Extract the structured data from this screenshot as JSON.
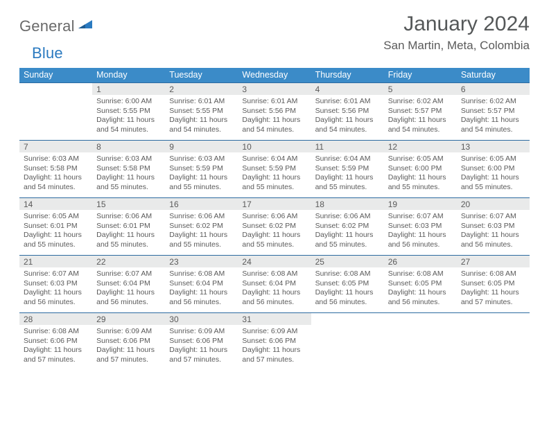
{
  "logo": {
    "part1": "General",
    "part2": "Blue"
  },
  "month_title": "January 2024",
  "location": "San Martin, Meta, Colombia",
  "colors": {
    "header_bg": "#3b8bc8",
    "header_text": "#ffffff",
    "daynum_bg": "#e9eaea",
    "row_divider": "#2b6aa0",
    "body_text": "#5a5a5a",
    "logo_gray": "#6a6a6a",
    "logo_blue": "#2b7ac0",
    "page_bg": "#ffffff"
  },
  "typography": {
    "title_fontsize": 30,
    "location_fontsize": 17,
    "dayhead_fontsize": 12.5,
    "daynum_fontsize": 12,
    "cell_fontsize": 10.5,
    "font_family": "Arial"
  },
  "day_headers": [
    "Sunday",
    "Monday",
    "Tuesday",
    "Wednesday",
    "Thursday",
    "Friday",
    "Saturday"
  ],
  "weeks": [
    [
      {
        "num": "",
        "lines": []
      },
      {
        "num": "1",
        "lines": [
          "Sunrise: 6:00 AM",
          "Sunset: 5:55 PM",
          "Daylight: 11 hours and 54 minutes."
        ]
      },
      {
        "num": "2",
        "lines": [
          "Sunrise: 6:01 AM",
          "Sunset: 5:55 PM",
          "Daylight: 11 hours and 54 minutes."
        ]
      },
      {
        "num": "3",
        "lines": [
          "Sunrise: 6:01 AM",
          "Sunset: 5:56 PM",
          "Daylight: 11 hours and 54 minutes."
        ]
      },
      {
        "num": "4",
        "lines": [
          "Sunrise: 6:01 AM",
          "Sunset: 5:56 PM",
          "Daylight: 11 hours and 54 minutes."
        ]
      },
      {
        "num": "5",
        "lines": [
          "Sunrise: 6:02 AM",
          "Sunset: 5:57 PM",
          "Daylight: 11 hours and 54 minutes."
        ]
      },
      {
        "num": "6",
        "lines": [
          "Sunrise: 6:02 AM",
          "Sunset: 5:57 PM",
          "Daylight: 11 hours and 54 minutes."
        ]
      }
    ],
    [
      {
        "num": "7",
        "lines": [
          "Sunrise: 6:03 AM",
          "Sunset: 5:58 PM",
          "Daylight: 11 hours and 54 minutes."
        ]
      },
      {
        "num": "8",
        "lines": [
          "Sunrise: 6:03 AM",
          "Sunset: 5:58 PM",
          "Daylight: 11 hours and 55 minutes."
        ]
      },
      {
        "num": "9",
        "lines": [
          "Sunrise: 6:03 AM",
          "Sunset: 5:59 PM",
          "Daylight: 11 hours and 55 minutes."
        ]
      },
      {
        "num": "10",
        "lines": [
          "Sunrise: 6:04 AM",
          "Sunset: 5:59 PM",
          "Daylight: 11 hours and 55 minutes."
        ]
      },
      {
        "num": "11",
        "lines": [
          "Sunrise: 6:04 AM",
          "Sunset: 5:59 PM",
          "Daylight: 11 hours and 55 minutes."
        ]
      },
      {
        "num": "12",
        "lines": [
          "Sunrise: 6:05 AM",
          "Sunset: 6:00 PM",
          "Daylight: 11 hours and 55 minutes."
        ]
      },
      {
        "num": "13",
        "lines": [
          "Sunrise: 6:05 AM",
          "Sunset: 6:00 PM",
          "Daylight: 11 hours and 55 minutes."
        ]
      }
    ],
    [
      {
        "num": "14",
        "lines": [
          "Sunrise: 6:05 AM",
          "Sunset: 6:01 PM",
          "Daylight: 11 hours and 55 minutes."
        ]
      },
      {
        "num": "15",
        "lines": [
          "Sunrise: 6:06 AM",
          "Sunset: 6:01 PM",
          "Daylight: 11 hours and 55 minutes."
        ]
      },
      {
        "num": "16",
        "lines": [
          "Sunrise: 6:06 AM",
          "Sunset: 6:02 PM",
          "Daylight: 11 hours and 55 minutes."
        ]
      },
      {
        "num": "17",
        "lines": [
          "Sunrise: 6:06 AM",
          "Sunset: 6:02 PM",
          "Daylight: 11 hours and 55 minutes."
        ]
      },
      {
        "num": "18",
        "lines": [
          "Sunrise: 6:06 AM",
          "Sunset: 6:02 PM",
          "Daylight: 11 hours and 55 minutes."
        ]
      },
      {
        "num": "19",
        "lines": [
          "Sunrise: 6:07 AM",
          "Sunset: 6:03 PM",
          "Daylight: 11 hours and 56 minutes."
        ]
      },
      {
        "num": "20",
        "lines": [
          "Sunrise: 6:07 AM",
          "Sunset: 6:03 PM",
          "Daylight: 11 hours and 56 minutes."
        ]
      }
    ],
    [
      {
        "num": "21",
        "lines": [
          "Sunrise: 6:07 AM",
          "Sunset: 6:03 PM",
          "Daylight: 11 hours and 56 minutes."
        ]
      },
      {
        "num": "22",
        "lines": [
          "Sunrise: 6:07 AM",
          "Sunset: 6:04 PM",
          "Daylight: 11 hours and 56 minutes."
        ]
      },
      {
        "num": "23",
        "lines": [
          "Sunrise: 6:08 AM",
          "Sunset: 6:04 PM",
          "Daylight: 11 hours and 56 minutes."
        ]
      },
      {
        "num": "24",
        "lines": [
          "Sunrise: 6:08 AM",
          "Sunset: 6:04 PM",
          "Daylight: 11 hours and 56 minutes."
        ]
      },
      {
        "num": "25",
        "lines": [
          "Sunrise: 6:08 AM",
          "Sunset: 6:05 PM",
          "Daylight: 11 hours and 56 minutes."
        ]
      },
      {
        "num": "26",
        "lines": [
          "Sunrise: 6:08 AM",
          "Sunset: 6:05 PM",
          "Daylight: 11 hours and 56 minutes."
        ]
      },
      {
        "num": "27",
        "lines": [
          "Sunrise: 6:08 AM",
          "Sunset: 6:05 PM",
          "Daylight: 11 hours and 57 minutes."
        ]
      }
    ],
    [
      {
        "num": "28",
        "lines": [
          "Sunrise: 6:08 AM",
          "Sunset: 6:06 PM",
          "Daylight: 11 hours and 57 minutes."
        ]
      },
      {
        "num": "29",
        "lines": [
          "Sunrise: 6:09 AM",
          "Sunset: 6:06 PM",
          "Daylight: 11 hours and 57 minutes."
        ]
      },
      {
        "num": "30",
        "lines": [
          "Sunrise: 6:09 AM",
          "Sunset: 6:06 PM",
          "Daylight: 11 hours and 57 minutes."
        ]
      },
      {
        "num": "31",
        "lines": [
          "Sunrise: 6:09 AM",
          "Sunset: 6:06 PM",
          "Daylight: 11 hours and 57 minutes."
        ]
      },
      {
        "num": "",
        "lines": []
      },
      {
        "num": "",
        "lines": []
      },
      {
        "num": "",
        "lines": []
      }
    ]
  ]
}
